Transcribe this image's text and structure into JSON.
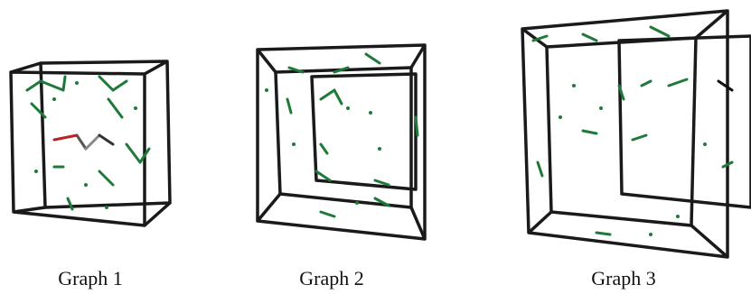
{
  "captions": [
    "Graph 1",
    "Graph 2",
    "Graph 3"
  ]
}
